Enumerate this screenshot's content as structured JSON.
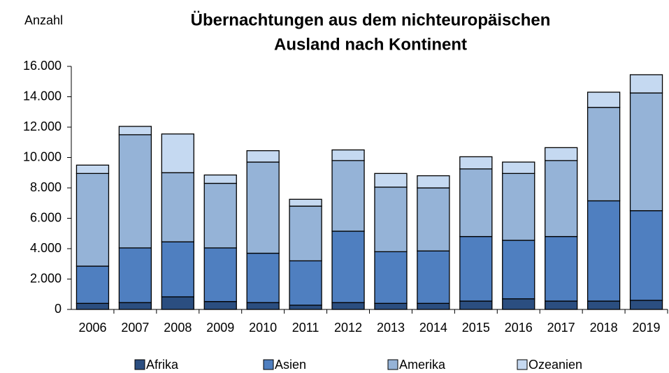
{
  "chart_data": {
    "type": "stacked_bar",
    "title": [
      "Übernachtungen aus dem nichteuropäischen",
      "Ausland nach Kontinent"
    ],
    "y_label": "Anzahl",
    "categories": [
      "2006",
      "2007",
      "2008",
      "2009",
      "2010",
      "2011",
      "2012",
      "2013",
      "2014",
      "2015",
      "2016",
      "2017",
      "2018",
      "2019"
    ],
    "series": [
      {
        "name": "Afrika",
        "color": "#2b4e80",
        "values": [
          400,
          450,
          830,
          520,
          450,
          280,
          450,
          400,
          400,
          550,
          700,
          550,
          550,
          600
        ]
      },
      {
        "name": "Asien",
        "color": "#4f7fc0",
        "values": [
          2450,
          3600,
          3620,
          3530,
          3250,
          2920,
          4700,
          3400,
          3450,
          4250,
          3850,
          4250,
          6600,
          5900
        ]
      },
      {
        "name": "Amerika",
        "color": "#95b3d7",
        "values": [
          6100,
          7450,
          4550,
          4250,
          6000,
          3600,
          4650,
          4250,
          4150,
          4450,
          4400,
          5000,
          6150,
          7750
        ]
      },
      {
        "name": "Ozeanien",
        "color": "#c5d9f1",
        "values": [
          550,
          550,
          2550,
          550,
          750,
          450,
          700,
          900,
          800,
          800,
          750,
          850,
          1000,
          1200
        ]
      }
    ],
    "ylim": [
      0,
      16000
    ],
    "yticks": [
      0,
      {
        "value": 2000,
        "label": "2.000"
      },
      {
        "value": 4000,
        "label": "4.000"
      },
      {
        "value": 6000,
        "label": "6.000"
      },
      {
        "value": 8000,
        "label": "8.000"
      },
      {
        "value": 10000,
        "label": "10.000"
      },
      {
        "value": 12000,
        "label": "12.000"
      },
      {
        "value": 14000,
        "label": "14.000"
      },
      {
        "value": 16000,
        "label": "16.000"
      }
    ],
    "legend": "bottom"
  }
}
